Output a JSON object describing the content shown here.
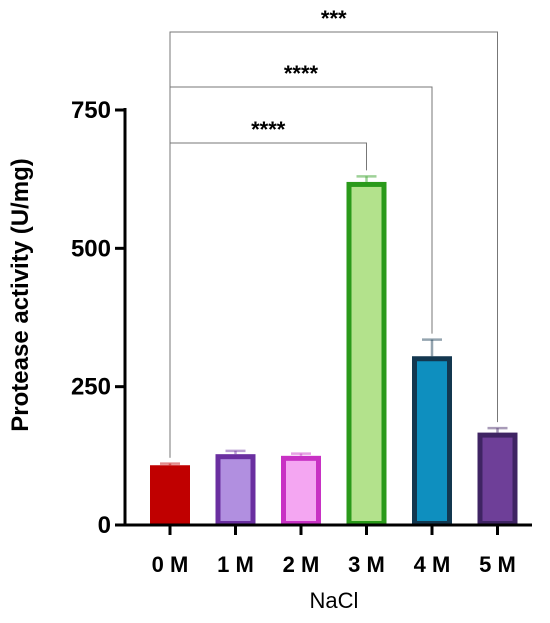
{
  "chart_data": {
    "type": "bar",
    "title": "",
    "xlabel": "NaCl",
    "ylabel": "Protease activity (U/mg)",
    "ylim": [
      0,
      750
    ],
    "yticks": [
      0,
      250,
      500,
      750
    ],
    "grid": false,
    "categories": [
      "0 M",
      "1 M",
      "2 M",
      "3 M",
      "4 M",
      "5 M"
    ],
    "values": [
      108,
      128,
      125,
      620,
      305,
      167
    ],
    "errors": [
      3,
      6,
      4,
      10,
      30,
      8
    ],
    "bar_fill_colors": [
      "#c00000",
      "#b18fe0",
      "#f4a6f2",
      "#b3e28c",
      "#0e8fbf",
      "#6e3f98"
    ],
    "bar_edge_colors": [
      "#c00000",
      "#6a2fa0",
      "#c831c4",
      "#2a9a1a",
      "#13374f",
      "#3f2463"
    ],
    "significance": [
      {
        "from": "0 M",
        "to": "3 M",
        "label": "****"
      },
      {
        "from": "0 M",
        "to": "4 M",
        "label": "****"
      },
      {
        "from": "0 M",
        "to": "5 M",
        "label": "***"
      }
    ]
  }
}
